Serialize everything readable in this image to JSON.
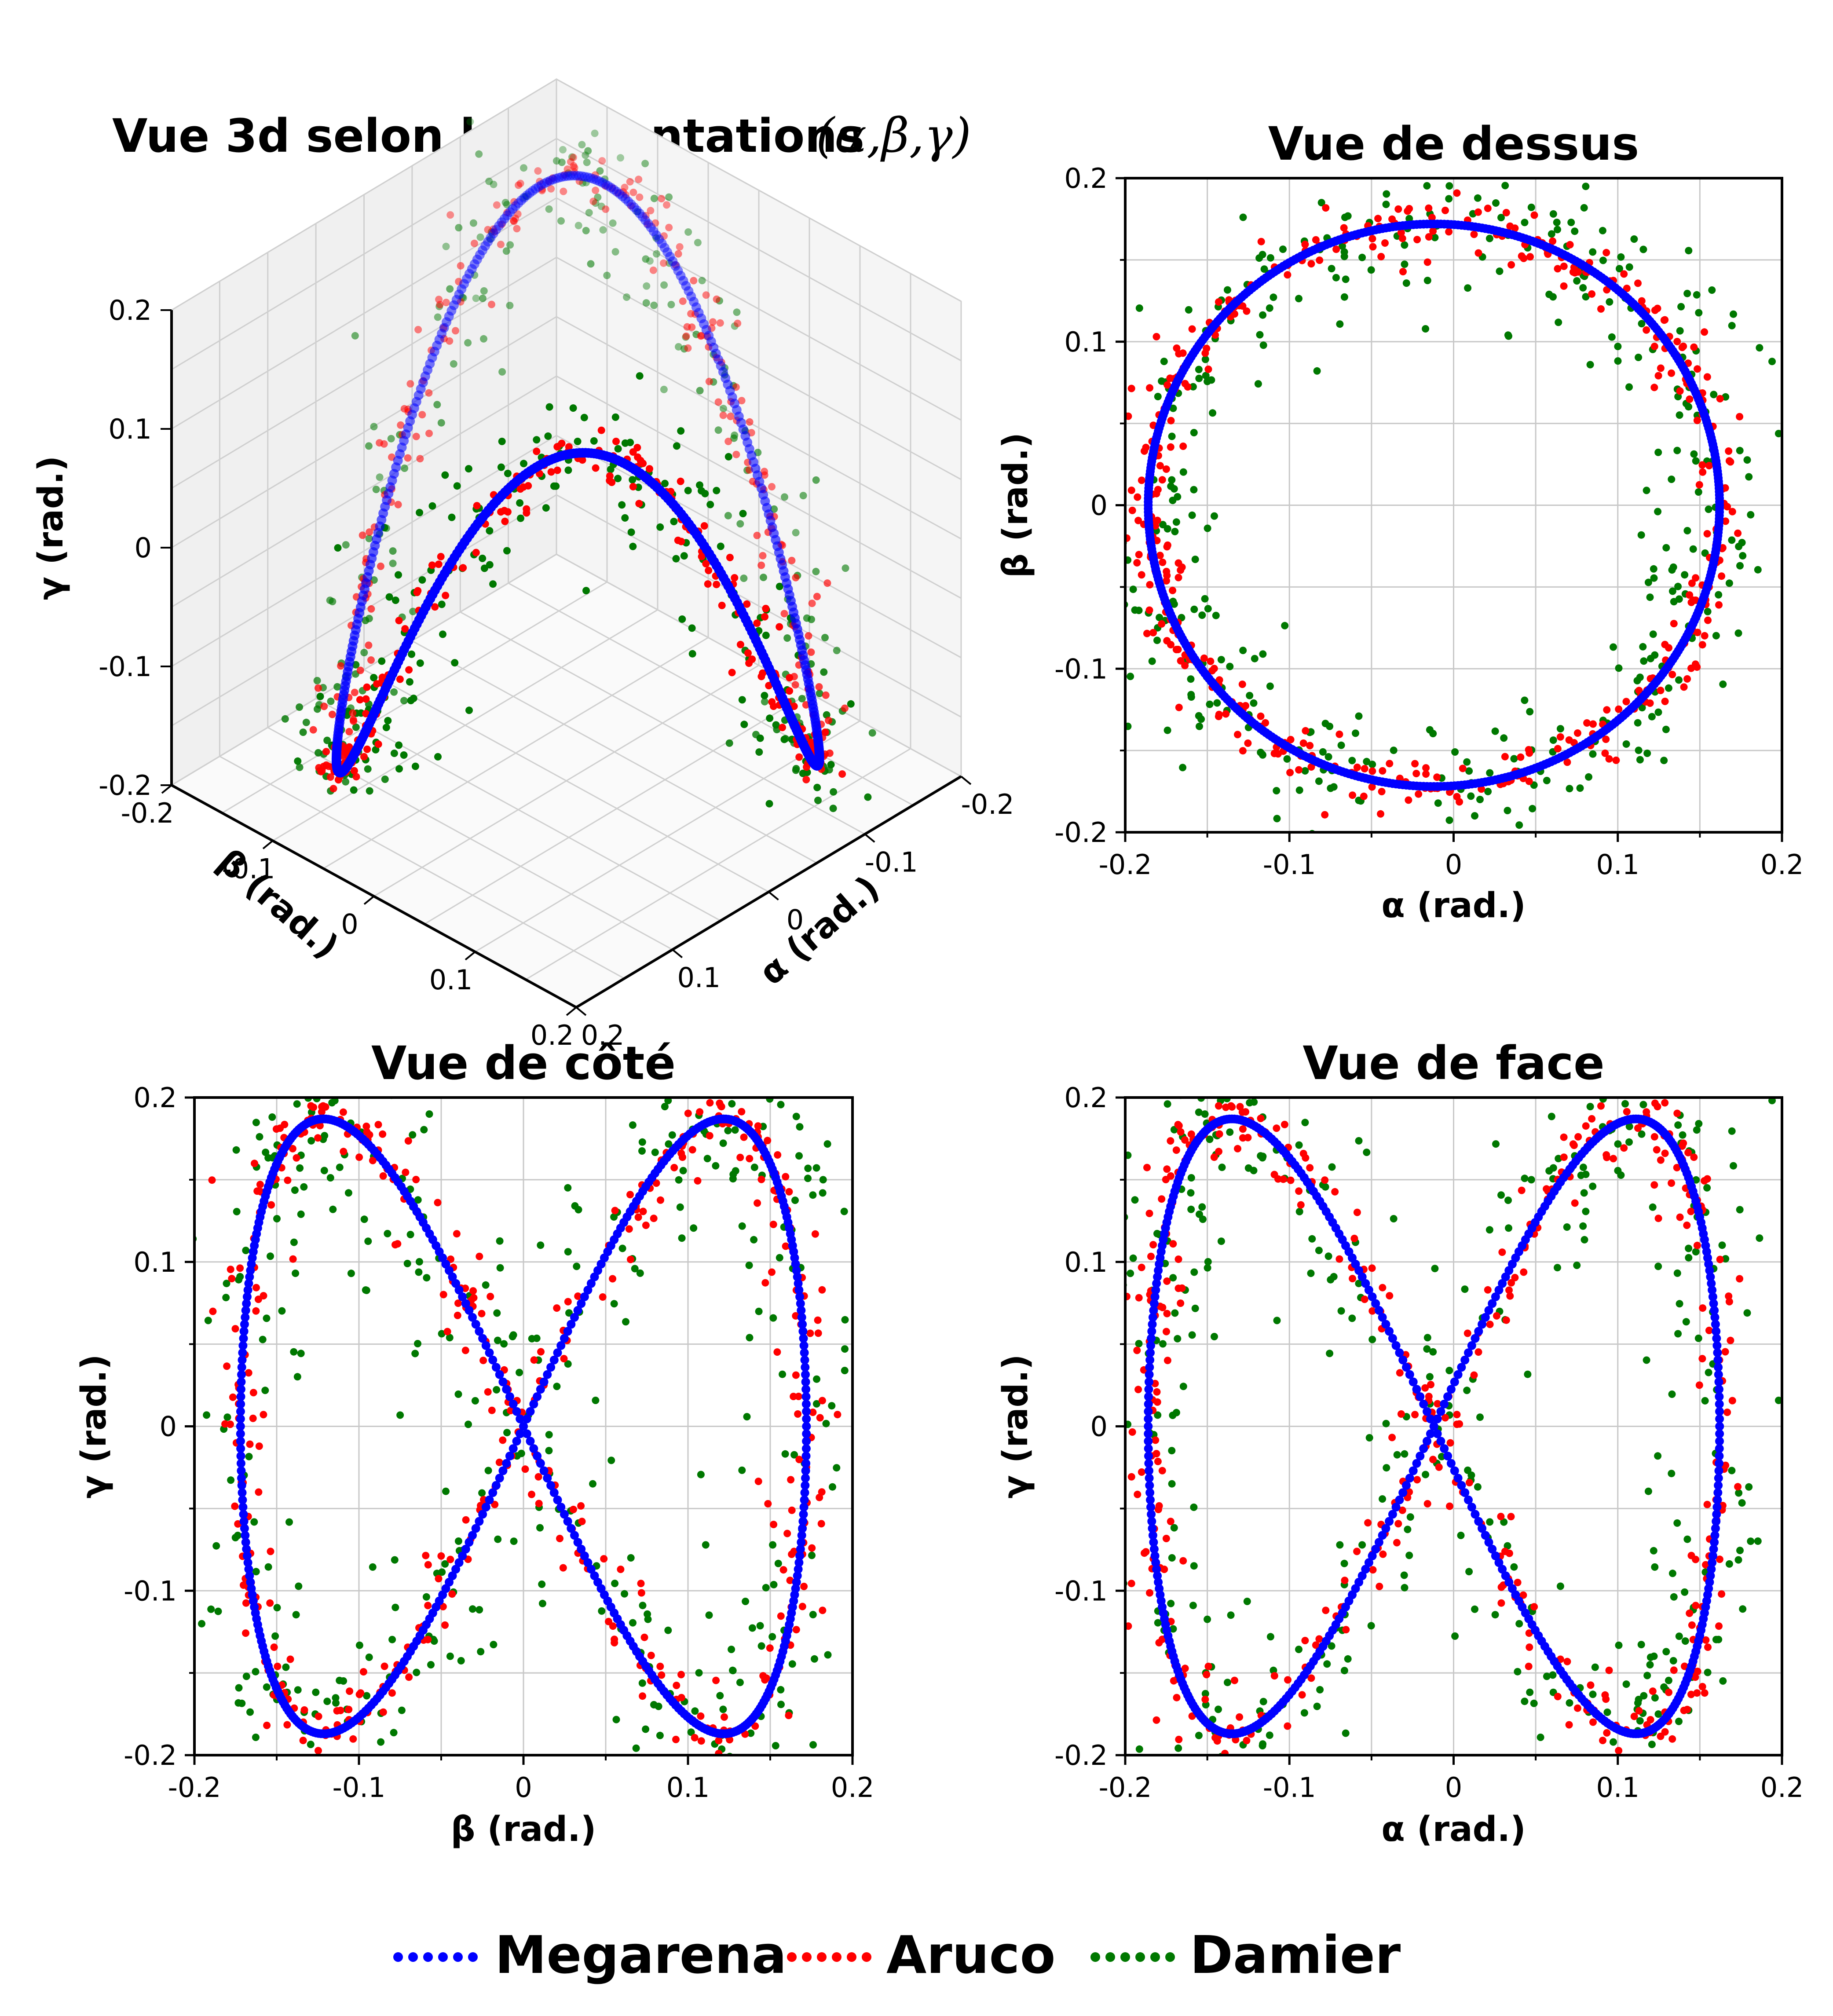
{
  "colors": {
    "megarena": "#0000ff",
    "aruco": "#ff0000",
    "damier": "#007800"
  },
  "legend": {
    "placement": "bottom-center",
    "items": [
      {
        "label": "Megarena",
        "color": "#0000ff"
      },
      {
        "label": "Aruco",
        "color": "#ff0000"
      },
      {
        "label": "Damier",
        "color": "#007800"
      }
    ]
  },
  "chart_data": [
    {
      "type": "scatter3d",
      "title": "Vue 3d selon les orientations",
      "title_math": "(α,β,γ)",
      "xlabel": "α (rad.)",
      "ylabel": "β (rad.)",
      "zlabel": "γ (rad.)",
      "xlim": [
        -0.2,
        0.2
      ],
      "ylim": [
        -0.2,
        0.2
      ],
      "zlim": [
        -0.2,
        0.2
      ],
      "xticks": [
        "-0.2",
        "-0.1",
        "0",
        "0.1",
        "0.2"
      ],
      "yticks": [
        "-0.2",
        "-0.1",
        "0",
        "0.1",
        "0.2"
      ],
      "zticks": [
        "-0.2",
        "-0.1",
        "0",
        "0.1",
        "0.2"
      ],
      "curve": "closed trajectory: α = -0.012 + 0.174·cos(t), β = 0.172·sin(t), γ = 0.187·sin(2t)",
      "series": [
        {
          "name": "Megarena",
          "noise": 0.0
        },
        {
          "name": "Aruco",
          "noise": 0.008
        },
        {
          "name": "Damier",
          "noise": 0.022
        }
      ],
      "grid": true
    },
    {
      "type": "scatter",
      "title": "Vue de dessus",
      "xlabel": "α (rad.)",
      "ylabel": "β (rad.)",
      "xlim": [
        -0.2,
        0.2
      ],
      "ylim": [
        -0.2,
        0.2
      ],
      "xticks": [
        "-0.2",
        "-0.1",
        "0",
        "0.1",
        "0.2"
      ],
      "yticks": [
        "-0.2",
        "-0.1",
        "0",
        "0.1",
        "0.2"
      ],
      "series": [
        {
          "name": "Megarena",
          "shape": "circle",
          "center": [
            -0.012,
            0.0
          ],
          "radius_x": 0.174,
          "radius_y": 0.172
        },
        {
          "name": "Aruco",
          "shape": "circle",
          "center": [
            -0.012,
            0.0
          ],
          "radius_x": 0.174,
          "radius_y": 0.172
        },
        {
          "name": "Damier",
          "shape": "circle",
          "center": [
            -0.012,
            0.0
          ],
          "radius_x": 0.174,
          "radius_y": 0.172
        }
      ],
      "grid": true
    },
    {
      "type": "scatter",
      "title": "Vue de côté",
      "xlabel": "β (rad.)",
      "ylabel": "γ (rad.)",
      "xlim": [
        -0.2,
        0.2
      ],
      "ylim": [
        -0.2,
        0.2
      ],
      "xticks": [
        "-0.2",
        "-0.1",
        "0",
        "0.1",
        "0.2"
      ],
      "yticks": [
        "-0.2",
        "-0.1",
        "0",
        "0.1",
        "0.2"
      ],
      "series": [
        {
          "name": "Megarena"
        },
        {
          "name": "Aruco"
        },
        {
          "name": "Damier"
        }
      ],
      "grid": true
    },
    {
      "type": "scatter",
      "title": "Vue de face",
      "xlabel": "α (rad.)",
      "ylabel": "γ (rad.)",
      "xlim": [
        -0.2,
        0.2
      ],
      "ylim": [
        -0.2,
        0.2
      ],
      "xticks": [
        "-0.2",
        "-0.1",
        "0",
        "0.1",
        "0.2"
      ],
      "yticks": [
        "-0.2",
        "-0.1",
        "0",
        "0.1",
        "0.2"
      ],
      "series": [
        {
          "name": "Megarena"
        },
        {
          "name": "Aruco"
        },
        {
          "name": "Damier"
        }
      ],
      "grid": true
    }
  ]
}
